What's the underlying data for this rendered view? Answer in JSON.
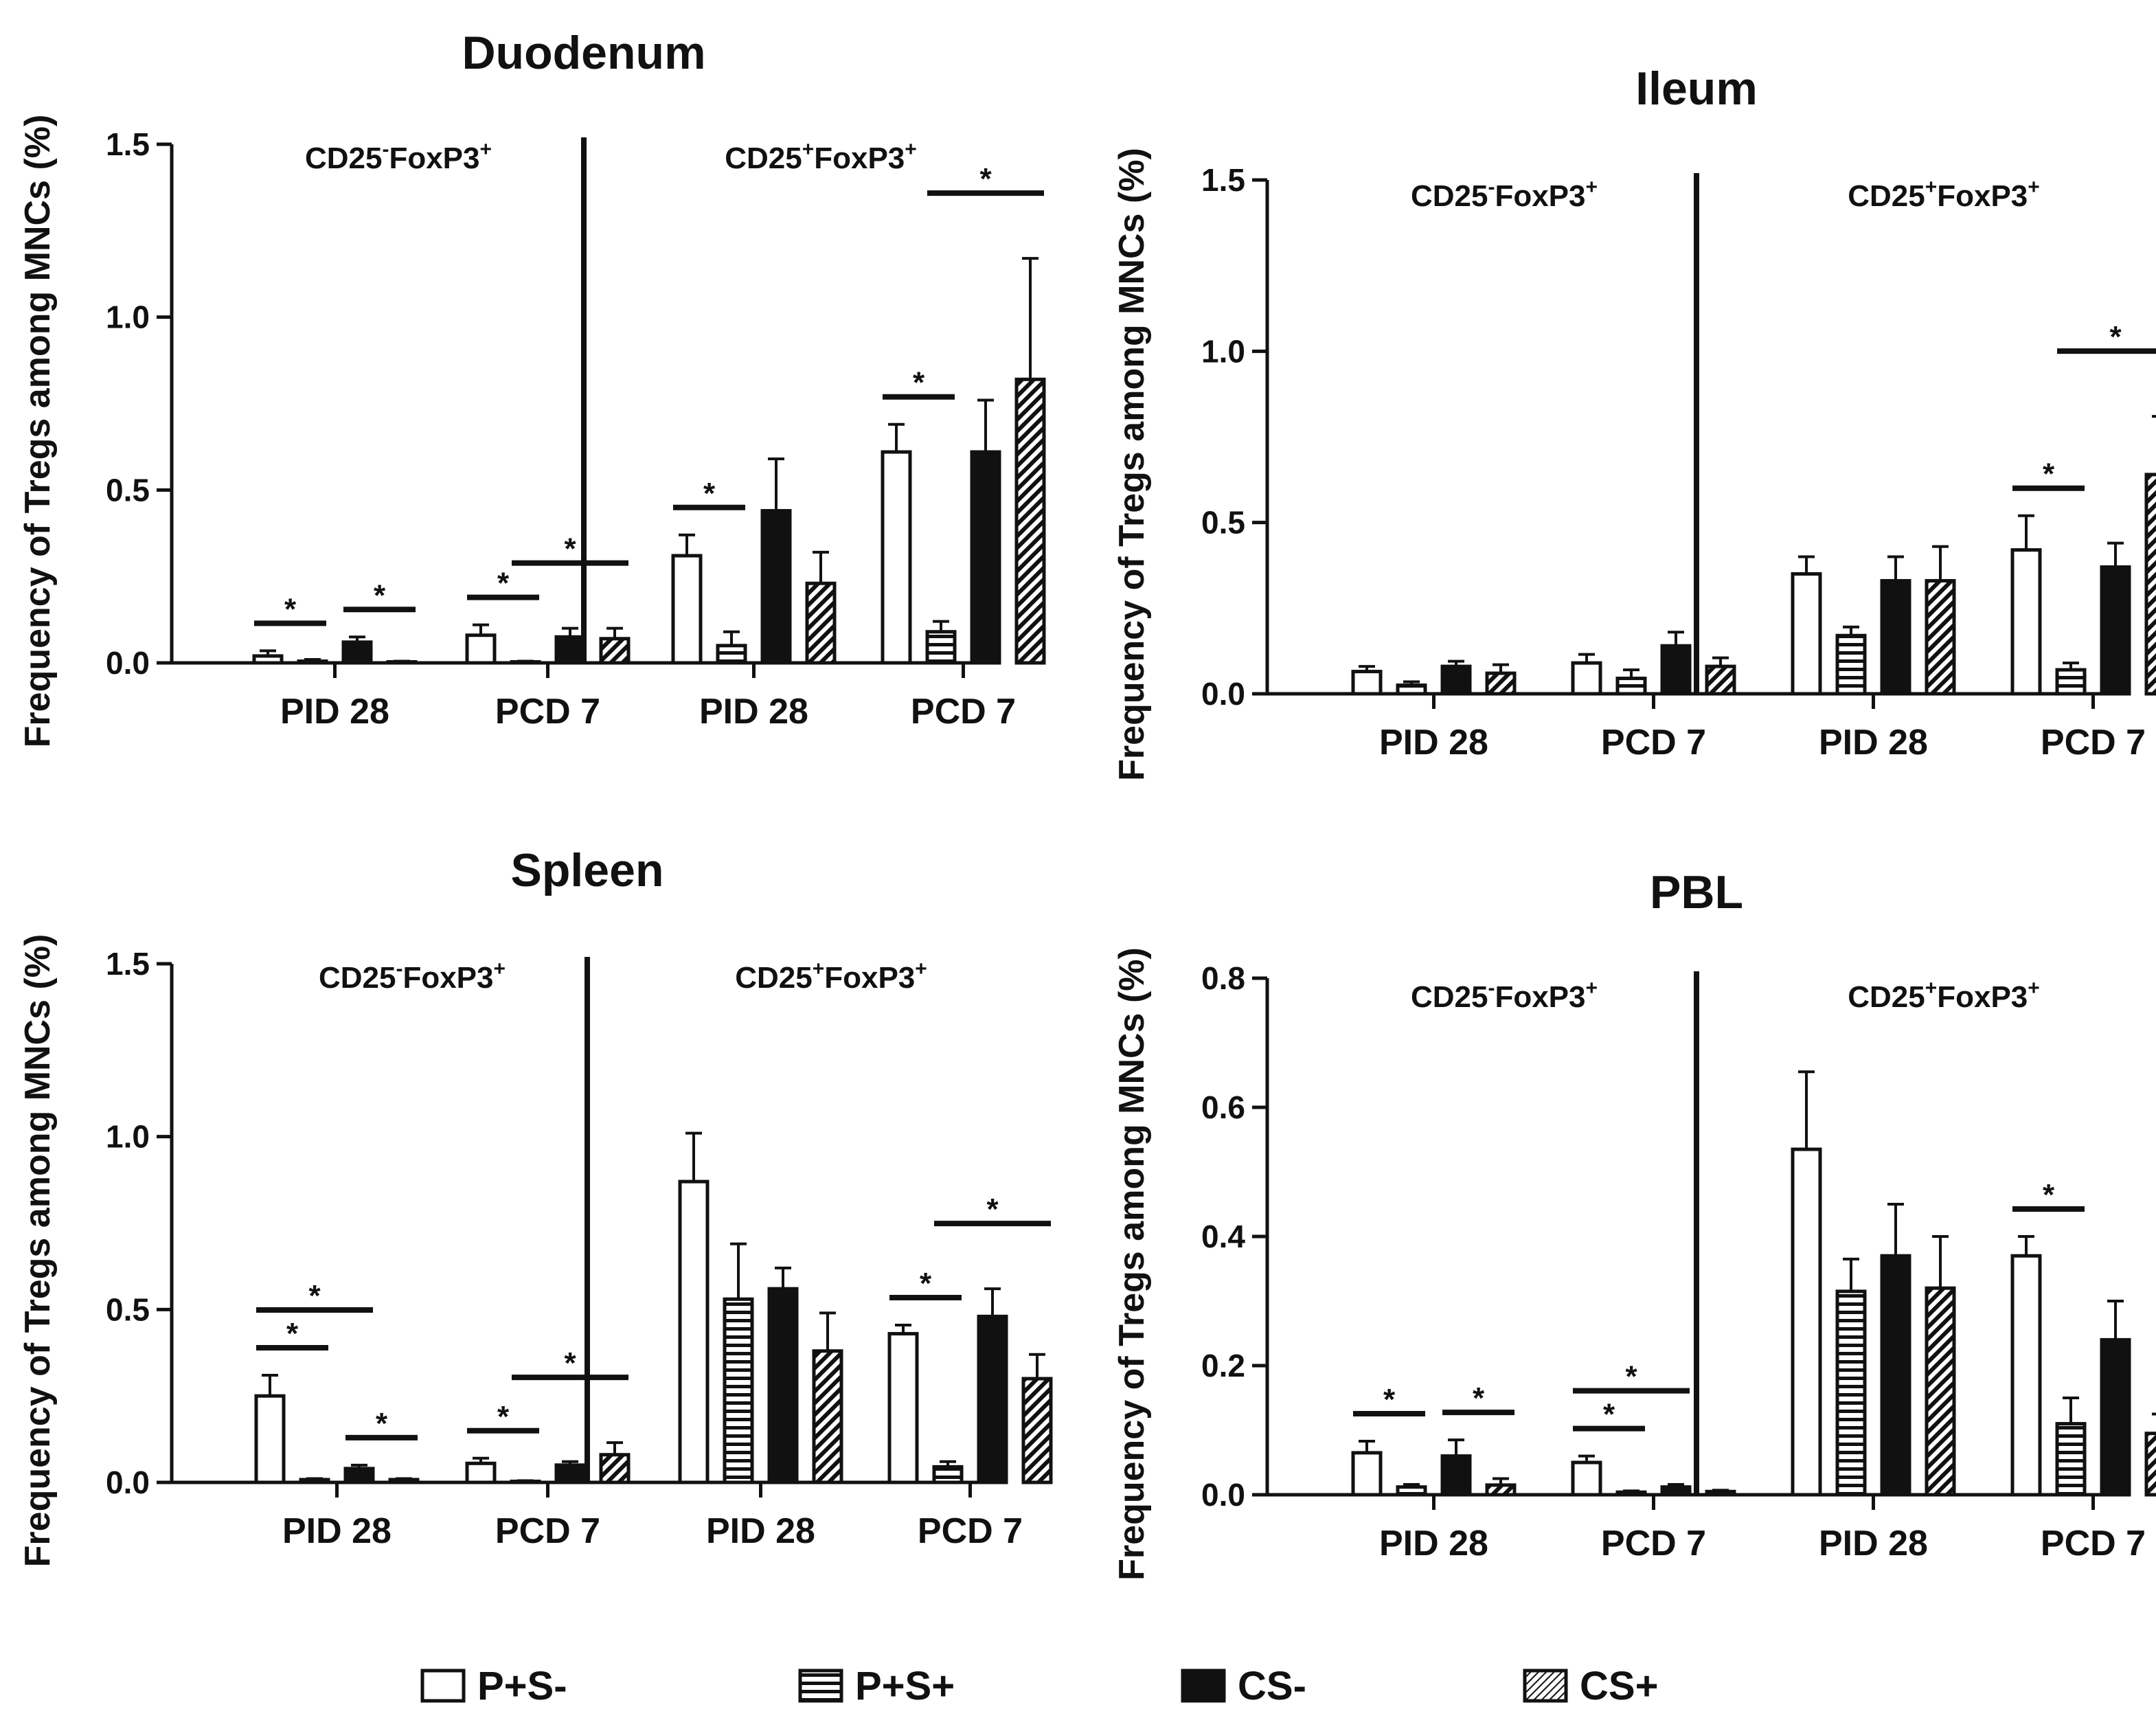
{
  "legend": [
    {
      "key": "PpSm",
      "label": "P+S-"
    },
    {
      "key": "PpSp",
      "label": "P+S+"
    },
    {
      "key": "CSm",
      "label": "CS-"
    },
    {
      "key": "CSp",
      "label": "CS+"
    }
  ],
  "chart_data": [
    {
      "type": "bar",
      "title": "Duodenum",
      "ylabel": "Frequency of Tregs among MNCs (%)",
      "ylim": [
        0,
        1.5
      ],
      "yticks": [
        "0.0",
        "0.5",
        "1.0",
        "1.5"
      ],
      "group_labels": [
        {
          "base": "CD25",
          "sup": "-",
          "rest": "FoxP3",
          "sup2": "+"
        },
        {
          "base": "CD25",
          "sup": "+",
          "rest": "FoxP3",
          "sup2": "+"
        }
      ],
      "categories": [
        "PID 28",
        "PCD 7",
        "PID 28",
        "PCD 7"
      ],
      "series": [
        {
          "name": "P+S-",
          "values": [
            0.02,
            0.08,
            0.31,
            0.61
          ],
          "errors": [
            0.015,
            0.03,
            0.06,
            0.08
          ]
        },
        {
          "name": "P+S+",
          "values": [
            0.005,
            0.003,
            0.05,
            0.09
          ],
          "errors": [
            0.005,
            0.002,
            0.04,
            0.03
          ]
        },
        {
          "name": "CS-",
          "values": [
            0.06,
            0.075,
            0.44,
            0.61
          ],
          "errors": [
            0.015,
            0.025,
            0.15,
            0.15
          ]
        },
        {
          "name": "CS+",
          "values": [
            0.003,
            0.07,
            0.23,
            0.82
          ],
          "errors": [
            0.002,
            0.03,
            0.09,
            0.35
          ]
        }
      ],
      "significance": [
        {
          "cat": 0,
          "from": 0,
          "to": 1,
          "level": 0,
          "label": "*"
        },
        {
          "cat": 0,
          "from": 2,
          "to": 3,
          "level": 0,
          "label": "*"
        },
        {
          "cat": 1,
          "from": 0,
          "to": 1,
          "level": 0,
          "label": "*"
        },
        {
          "cat": 1,
          "from": 1,
          "to": 3,
          "level": 1,
          "label": "*"
        },
        {
          "cat": 2,
          "from": 0,
          "to": 1,
          "level": 0,
          "label": "*"
        },
        {
          "cat": 3,
          "from": 0,
          "to": 1,
          "level": 0,
          "label": "*"
        },
        {
          "cat": 3,
          "from": 1,
          "to": 3,
          "level": 1,
          "label": "*"
        }
      ]
    },
    {
      "type": "bar",
      "title": "Ileum",
      "ylabel": "Frequency of Tregs among MNCs (%)",
      "ylim": [
        0,
        1.5
      ],
      "yticks": [
        "0.0",
        "0.5",
        "1.0",
        "1.5"
      ],
      "group_labels": [
        {
          "base": "CD25",
          "sup": "-",
          "rest": "FoxP3",
          "sup2": "+"
        },
        {
          "base": "CD25",
          "sup": "+",
          "rest": "FoxP3",
          "sup2": "+"
        }
      ],
      "categories": [
        "PID 28",
        "PCD 7",
        "PID 28",
        "PCD 7"
      ],
      "series": [
        {
          "name": "P+S-",
          "values": [
            0.065,
            0.09,
            0.35,
            0.42
          ],
          "errors": [
            0.015,
            0.025,
            0.05,
            0.1
          ]
        },
        {
          "name": "P+S+",
          "values": [
            0.025,
            0.045,
            0.17,
            0.07
          ],
          "errors": [
            0.01,
            0.025,
            0.025,
            0.02
          ]
        },
        {
          "name": "CS-",
          "values": [
            0.08,
            0.14,
            0.33,
            0.37
          ],
          "errors": [
            0.015,
            0.04,
            0.07,
            0.07
          ]
        },
        {
          "name": "CS+",
          "values": [
            0.06,
            0.08,
            0.33,
            0.64
          ],
          "errors": [
            0.025,
            0.025,
            0.1,
            0.17
          ]
        }
      ],
      "significance": [
        {
          "cat": 3,
          "from": 0,
          "to": 1,
          "level": 0,
          "label": "*"
        },
        {
          "cat": 3,
          "from": 1,
          "to": 3,
          "level": 1,
          "label": "*"
        }
      ]
    },
    {
      "type": "bar",
      "title": "Spleen",
      "ylabel": "Frequency of Tregs among MNCs (%)",
      "ylim": [
        0,
        1.5
      ],
      "yticks": [
        "0.0",
        "0.5",
        "1.0",
        "1.5"
      ],
      "group_labels": [
        {
          "base": "CD25",
          "sup": "-",
          "rest": "FoxP3",
          "sup2": "+"
        },
        {
          "base": "CD25",
          "sup": "+",
          "rest": "FoxP3",
          "sup2": "+"
        }
      ],
      "categories": [
        "PID 28",
        "PCD 7",
        "PID 28",
        "PCD 7"
      ],
      "series": [
        {
          "name": "P+S-",
          "values": [
            0.25,
            0.055,
            0.87,
            0.43
          ],
          "errors": [
            0.06,
            0.015,
            0.14,
            0.025
          ]
        },
        {
          "name": "P+S+",
          "values": [
            0.008,
            0.003,
            0.53,
            0.045
          ],
          "errors": [
            0.003,
            0.002,
            0.16,
            0.015
          ]
        },
        {
          "name": "CS-",
          "values": [
            0.04,
            0.05,
            0.56,
            0.48
          ],
          "errors": [
            0.01,
            0.01,
            0.06,
            0.08
          ]
        },
        {
          "name": "CS+",
          "values": [
            0.008,
            0.08,
            0.38,
            0.3
          ],
          "errors": [
            0.003,
            0.035,
            0.11,
            0.07
          ]
        }
      ],
      "significance": [
        {
          "cat": 0,
          "from": 0,
          "to": 1,
          "level": 0,
          "label": "*"
        },
        {
          "cat": 0,
          "from": 0,
          "to": 2,
          "level": 1,
          "label": "*"
        },
        {
          "cat": 0,
          "from": 2,
          "to": 3,
          "level": 0,
          "label": "*"
        },
        {
          "cat": 1,
          "from": 0,
          "to": 1,
          "level": 0,
          "label": "*"
        },
        {
          "cat": 1,
          "from": 1,
          "to": 3,
          "level": 1,
          "label": "*"
        },
        {
          "cat": 3,
          "from": 0,
          "to": 1,
          "level": 0,
          "label": "*"
        },
        {
          "cat": 3,
          "from": 1,
          "to": 3,
          "level": 1,
          "label": "*"
        }
      ]
    },
    {
      "type": "bar",
      "title": "PBL",
      "ylabel": "Frequency of Tregs among MNCs (%)",
      "ylim": [
        0,
        0.8
      ],
      "yticks": [
        "0.0",
        "0.2",
        "0.4",
        "0.6",
        "0.8"
      ],
      "group_labels": [
        {
          "base": "CD25",
          "sup": "-",
          "rest": "FoxP3",
          "sup2": "+"
        },
        {
          "base": "CD25",
          "sup": "+",
          "rest": "FoxP3",
          "sup2": "+"
        }
      ],
      "categories": [
        "PID 28",
        "PCD 7",
        "PID 28",
        "PCD 7"
      ],
      "series": [
        {
          "name": "P+S-",
          "values": [
            0.065,
            0.05,
            0.535,
            0.37
          ],
          "errors": [
            0.018,
            0.01,
            0.12,
            0.03
          ]
        },
        {
          "name": "P+S+",
          "values": [
            0.012,
            0.004,
            0.315,
            0.11
          ],
          "errors": [
            0.004,
            0.002,
            0.05,
            0.04
          ]
        },
        {
          "name": "CS-",
          "values": [
            0.06,
            0.012,
            0.37,
            0.24
          ],
          "errors": [
            0.025,
            0.004,
            0.08,
            0.06
          ]
        },
        {
          "name": "CS+",
          "values": [
            0.015,
            0.005,
            0.32,
            0.095
          ],
          "errors": [
            0.01,
            0.002,
            0.08,
            0.03
          ]
        }
      ],
      "significance": [
        {
          "cat": 0,
          "from": 0,
          "to": 1,
          "level": 0,
          "label": "*"
        },
        {
          "cat": 0,
          "from": 2,
          "to": 3,
          "level": 0,
          "label": "*"
        },
        {
          "cat": 1,
          "from": 0,
          "to": 1,
          "level": 0,
          "label": "*"
        },
        {
          "cat": 1,
          "from": 0,
          "to": 2,
          "level": 1,
          "label": "*"
        },
        {
          "cat": 3,
          "from": 0,
          "to": 1,
          "level": 0,
          "label": "*"
        }
      ]
    }
  ]
}
